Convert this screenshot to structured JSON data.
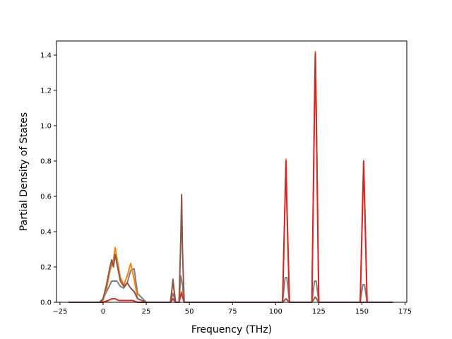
{
  "chart_data": {
    "type": "line",
    "title": "",
    "xlabel": "Frequency (THz)",
    "ylabel": "Partial Density of States",
    "xlim": [
      -27,
      176
    ],
    "ylim": [
      0,
      1.48
    ],
    "xticks": [
      -25,
      0,
      25,
      50,
      75,
      100,
      125,
      150,
      175
    ],
    "yticks": [
      0.0,
      0.2,
      0.4,
      0.6,
      0.8,
      1.0,
      1.2,
      1.4
    ],
    "xtick_labels": [
      "−25",
      "0",
      "25",
      "50",
      "75",
      "100",
      "125",
      "150",
      "175"
    ],
    "ytick_labels": [
      "0.0",
      "0.2",
      "0.4",
      "0.6",
      "0.8",
      "1.0",
      "1.2",
      "1.4"
    ],
    "grid": false,
    "legend": "none",
    "colors": [
      "#1f77b4",
      "#ff7f0e",
      "#2ca02c",
      "#d62728",
      "#9467bd",
      "#8c564b",
      "#e377c2",
      "#7f7f7f"
    ],
    "series": [
      {
        "color": "#7f7f7f",
        "x": [
          -20,
          -2,
          0,
          3,
          5,
          8,
          10,
          12,
          14,
          16,
          18,
          20,
          25,
          39,
          40.5,
          42,
          44,
          45,
          46,
          47,
          60,
          104,
          105.5,
          106.5,
          108,
          121,
          122.5,
          123.5,
          125,
          149,
          150.5,
          151.5,
          153,
          168
        ],
        "y": [
          0,
          0,
          0.02,
          0.08,
          0.12,
          0.12,
          0.09,
          0.08,
          0.11,
          0.18,
          0.19,
          0.05,
          0,
          0,
          0.05,
          0,
          0,
          0.15,
          0.1,
          0,
          0,
          0,
          0.14,
          0.14,
          0,
          0,
          0.12,
          0.12,
          0,
          0,
          0.1,
          0.1,
          0,
          0
        ]
      },
      {
        "color": "#ff7f0e",
        "x": [
          -20,
          -2,
          0,
          2,
          4,
          6,
          7,
          8,
          10,
          12,
          14,
          16,
          18,
          20,
          25,
          39,
          40.5,
          42,
          44,
          45,
          45.5,
          46,
          47,
          60,
          104,
          105.5,
          106,
          106.5,
          108,
          121,
          122.5,
          123,
          123.5,
          125,
          149,
          150.5,
          151,
          151.5,
          153,
          168
        ],
        "y": [
          0,
          0,
          0.01,
          0.08,
          0.18,
          0.24,
          0.31,
          0.25,
          0.14,
          0.1,
          0.15,
          0.22,
          0.13,
          0.02,
          0,
          0,
          0.12,
          0,
          0,
          0.05,
          0.06,
          0.04,
          0,
          0,
          0,
          0.6,
          0.81,
          0.55,
          0,
          0,
          1.1,
          1.42,
          1.1,
          0,
          0,
          0.6,
          0.8,
          0.6,
          0,
          0
        ]
      },
      {
        "color": "#d62728",
        "x": [
          -20,
          0,
          3,
          5,
          7,
          9,
          12,
          15,
          17,
          20,
          39,
          40.5,
          42,
          44,
          45,
          45.5,
          46,
          47,
          104,
          105.5,
          106,
          106.5,
          108,
          121,
          122.5,
          123,
          123.5,
          125,
          149,
          150.5,
          151,
          151.5,
          153,
          168
        ],
        "y": [
          0,
          0,
          0.01,
          0.02,
          0.02,
          0.01,
          0.01,
          0.01,
          0.01,
          0,
          0,
          0.02,
          0,
          0,
          0.04,
          0.05,
          0.03,
          0,
          0,
          0.6,
          0.8,
          0.55,
          0,
          0,
          1.1,
          1.41,
          1.1,
          0,
          0,
          0.6,
          0.8,
          0.6,
          0,
          0
        ]
      },
      {
        "color": "#8c564b",
        "x": [
          -20,
          -2,
          0,
          2,
          4,
          5,
          6,
          7,
          8,
          10,
          12,
          14,
          16,
          18,
          20,
          25,
          39,
          40,
          40.5,
          41,
          42,
          44,
          45,
          45.5,
          46,
          47,
          60,
          104,
          106,
          108,
          121,
          123,
          125,
          168
        ],
        "y": [
          0,
          0,
          0.02,
          0.1,
          0.2,
          0.24,
          0.2,
          0.27,
          0.22,
          0.12,
          0.09,
          0.11,
          0.08,
          0.06,
          0.02,
          0,
          0,
          0.08,
          0.13,
          0.08,
          0,
          0,
          0.35,
          0.61,
          0.3,
          0,
          0,
          0,
          0.02,
          0,
          0,
          0.03,
          0,
          0
        ]
      }
    ]
  }
}
